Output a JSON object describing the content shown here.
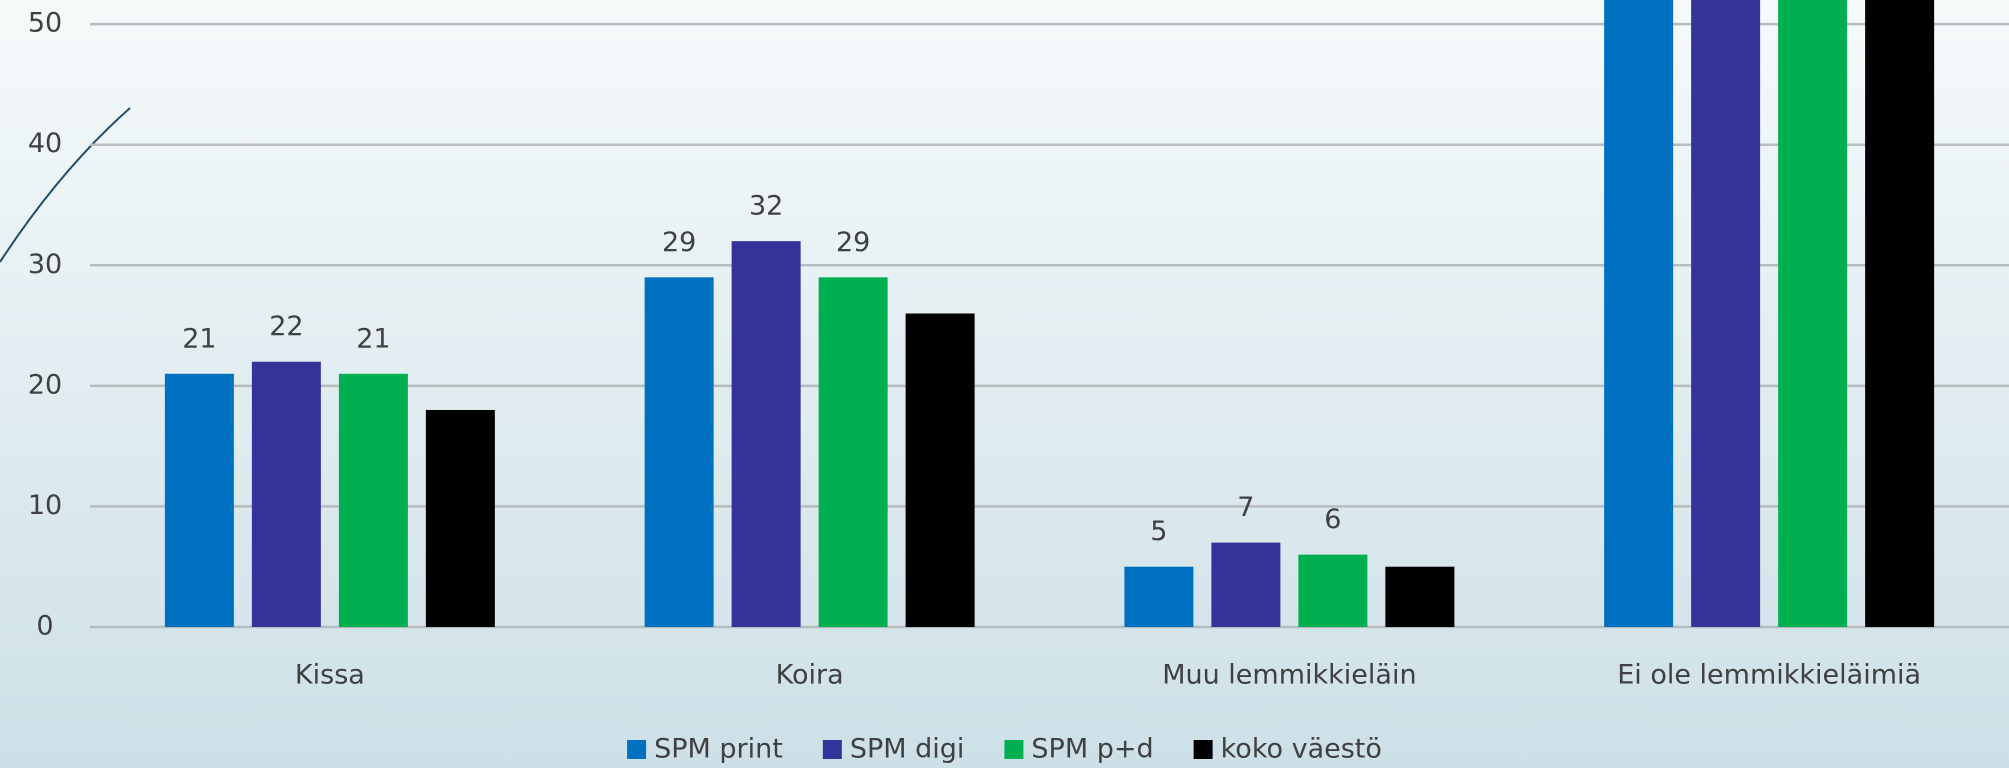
{
  "chart_data": {
    "type": "bar",
    "categories": [
      "Kissa",
      "Koira",
      "Muu lemmikkieläin",
      "Ei ole lemmikkieläimiä"
    ],
    "series": [
      {
        "name": "SPM print",
        "color": "#0070c0",
        "values": [
          21,
          29,
          5,
          53
        ],
        "labels": true
      },
      {
        "name": "SPM digi",
        "color": "#333399",
        "values": [
          22,
          32,
          7,
          52
        ],
        "labels": true
      },
      {
        "name": "SPM p+d",
        "color": "#00b050",
        "values": [
          21,
          29,
          6,
          53
        ],
        "labels": true
      },
      {
        "name": "koko väestö",
        "color": "#000000",
        "values": [
          18,
          26,
          5,
          56
        ],
        "labels": false
      }
    ],
    "ylim": [
      0,
      52
    ],
    "yticks": [
      0,
      10,
      20,
      30,
      40,
      50
    ],
    "grid": true,
    "legend": "bottom"
  }
}
